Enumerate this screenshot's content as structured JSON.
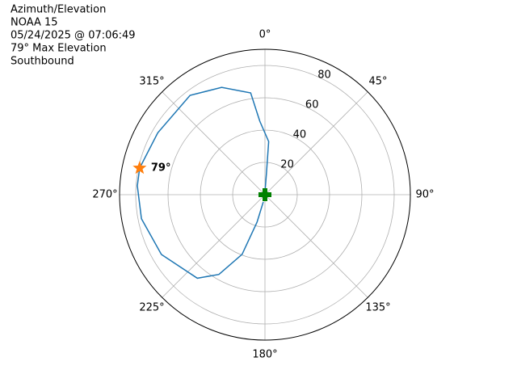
{
  "chart_data": {
    "type": "polar",
    "title_lines": [
      "Azimuth/Elevation",
      "NOAA 15",
      "05/24/2025 @ 07:06:49",
      "79° Max Elevation",
      "Southbound"
    ],
    "theta_direction": "clockwise",
    "theta_zero": "N",
    "x": [
      193,
      196,
      201,
      210,
      219,
      240,
      259,
      274,
      282,
      300,
      323,
      338,
      352,
      356,
      4,
      4,
      0
    ],
    "series": [
      {
        "color": "#1f77b4",
        "values": [
          4.6,
          17.7,
          39.5,
          57,
          66.5,
          74,
          77.9,
          79.2,
          79.3,
          76.6,
          77,
          71.6,
          63.6,
          45.6,
          33,
          13,
          1.5
        ]
      }
    ],
    "max_marker": {
      "x": 282,
      "value": 79.3,
      "color": "#ff7f0e",
      "label": "79°"
    },
    "position_marker": {
      "x": 0,
      "value": 0,
      "color": "#008000"
    },
    "ylim": [
      0,
      90
    ],
    "yticks": [
      20,
      40,
      60,
      80
    ],
    "xticks": [
      {
        "value": 0,
        "label": "0°"
      },
      {
        "value": 45,
        "label": "45°"
      },
      {
        "value": 90,
        "label": "90°"
      },
      {
        "value": 135,
        "label": "135°"
      },
      {
        "value": 180,
        "label": "180°"
      },
      {
        "value": 225,
        "label": "225°"
      },
      {
        "value": 270,
        "label": "270°"
      },
      {
        "value": 315,
        "label": "315°"
      }
    ],
    "grid": true
  }
}
